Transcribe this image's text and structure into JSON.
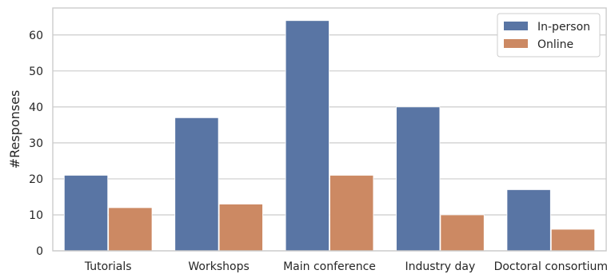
{
  "chart_data": {
    "type": "bar",
    "title": "",
    "xlabel": "",
    "ylabel": "#Responses",
    "categories": [
      "Tutorials",
      "Workshops",
      "Main conference",
      "Industry day",
      "Doctoral consortium"
    ],
    "series": [
      {
        "name": "In-person",
        "color": "#5975a4",
        "values": [
          21,
          37,
          64,
          40,
          17
        ]
      },
      {
        "name": "Online",
        "color": "#cc8963",
        "values": [
          12,
          13,
          21,
          10,
          6
        ]
      }
    ],
    "ylim": [
      0,
      67.5
    ],
    "yticks": [
      0,
      10,
      20,
      30,
      40,
      50,
      60
    ],
    "grid": "horizontal",
    "legend_position": "top-right"
  }
}
